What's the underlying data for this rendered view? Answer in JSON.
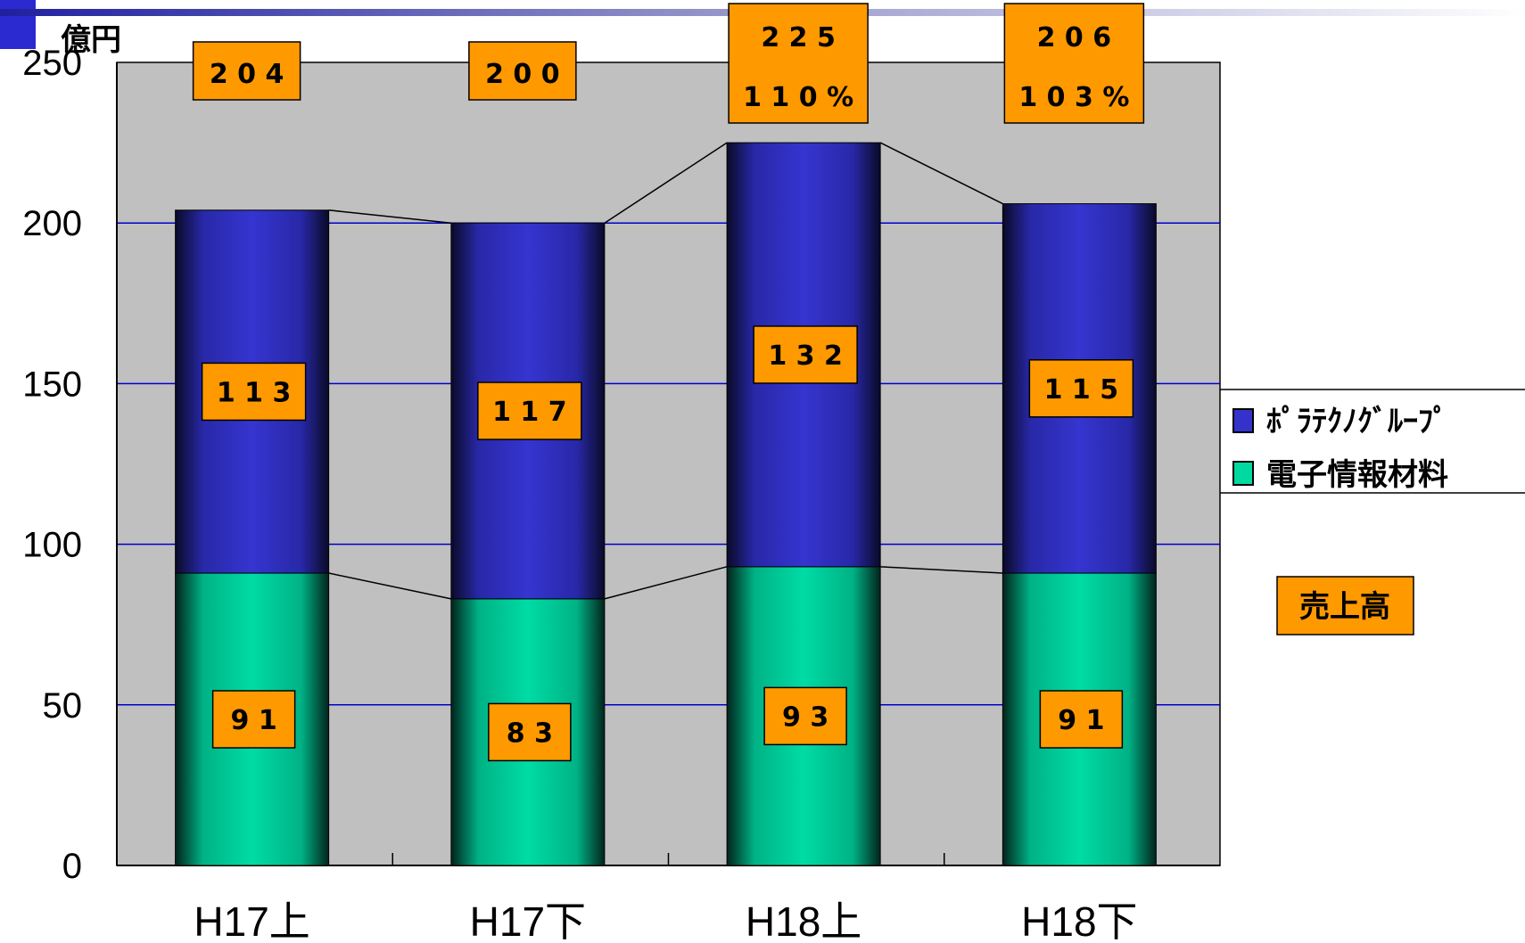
{
  "chart_data": {
    "type": "bar",
    "stacked": true,
    "unit": "億円",
    "categories": [
      "H17上",
      "H17下",
      "H18上",
      "H18下"
    ],
    "series": [
      {
        "name": "電子情報材料",
        "values": [
          91,
          83,
          93,
          91
        ],
        "color": "#00d9a0"
      },
      {
        "name": "ﾎﾟﾗﾃｸﾉｸﾞﾙｰﾌﾟ",
        "values": [
          113,
          117,
          132,
          115
        ],
        "color": "#3333cc"
      }
    ],
    "totals": [
      204,
      200,
      225,
      206
    ],
    "total_percent": [
      "",
      "",
      "110%",
      "103%"
    ],
    "ylim": [
      0,
      250
    ],
    "yticks": [
      0,
      50,
      100,
      150,
      200,
      250
    ],
    "grid": true,
    "legend_position": "right",
    "annotation": "売上高",
    "colors": {
      "plot_background": "#c0c0c0",
      "gridline": "#0000cc",
      "label_box": "#ff9900"
    }
  }
}
